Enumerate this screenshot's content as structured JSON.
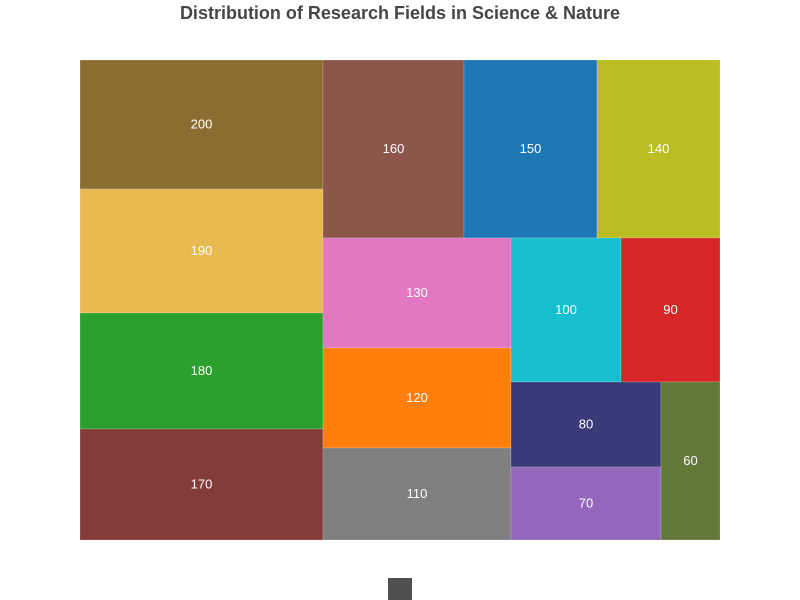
{
  "chart_data": {
    "type": "treemap",
    "title": "Distribution of Research Fields in Science & Nature",
    "values": [
      200,
      190,
      180,
      170,
      160,
      150,
      140,
      130,
      120,
      110,
      100,
      90,
      80,
      70,
      60
    ],
    "colors": [
      "#8c6d31",
      "#e7ba52",
      "#2ca02c",
      "#843c39",
      "#8c564b",
      "#1f77b4",
      "#bcbd22",
      "#e377c2",
      "#ff7f0e",
      "#7f7f7f",
      "#17becf",
      "#d62728",
      "#393b79",
      "#9467bd",
      "#637939"
    ],
    "label_color": "#ffffff",
    "legend": {
      "swatch_color": "#505050"
    }
  }
}
